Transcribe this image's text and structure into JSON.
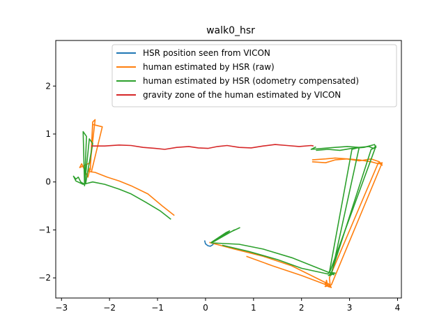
{
  "chart_data": {
    "type": "line",
    "title": "walk0_hsr",
    "xlabel": "",
    "ylabel": "",
    "xlim": [
      -3.12,
      4.08
    ],
    "ylim": [
      -2.42,
      2.95
    ],
    "xticks": [
      -3,
      -2,
      -1,
      0,
      1,
      2,
      3,
      4
    ],
    "yticks": [
      -2,
      -1,
      0,
      1,
      2
    ],
    "xtick_labels": [
      "−3",
      "−2",
      "−1",
      "0",
      "1",
      "2",
      "3",
      "4"
    ],
    "ytick_labels": [
      "−2",
      "−1",
      "0",
      "1",
      "2"
    ],
    "grid": false,
    "legend_position": "top-right",
    "series": [
      {
        "name": "HSR position seen from VICON",
        "color": "#1f77b4",
        "segments": [
          [
            [
              -0.02,
              -1.22
            ],
            [
              0.0,
              -1.29
            ],
            [
              0.05,
              -1.33
            ],
            [
              0.1,
              -1.34
            ],
            [
              0.15,
              -1.31
            ],
            [
              0.18,
              -1.27
            ]
          ]
        ]
      },
      {
        "name": "human estimated by HSR (raw)",
        "color": "#ff7f0e",
        "segments": [
          [
            [
              -0.65,
              -0.7
            ],
            [
              -0.9,
              -0.5
            ],
            [
              -1.2,
              -0.25
            ],
            [
              -1.55,
              -0.08
            ],
            [
              -1.8,
              0.02
            ],
            [
              -2.05,
              0.1
            ],
            [
              -2.3,
              0.2
            ],
            [
              -2.45,
              0.22
            ],
            [
              -2.4,
              0.3
            ],
            [
              -2.45,
              0.1
            ],
            [
              -2.58,
              0.38
            ],
            [
              -2.62,
              0.3
            ],
            [
              -2.4,
              0.4
            ],
            [
              -2.3,
              1.3
            ],
            [
              -2.35,
              1.25
            ],
            [
              -2.4,
              0.25
            ],
            [
              -2.35,
              1.2
            ],
            [
              -2.15,
              1.15
            ],
            [
              -2.38,
              0.2
            ]
          ],
          [
            [
              0.08,
              -1.26
            ],
            [
              0.6,
              -1.4
            ],
            [
              1.2,
              -1.55
            ],
            [
              1.8,
              -1.75
            ],
            [
              2.3,
              -2.0
            ],
            [
              2.6,
              -2.15
            ],
            [
              2.5,
              -2.18
            ],
            [
              2.52,
              -2.05
            ],
            [
              2.55,
              -2.18
            ],
            [
              2.62,
              -2.2
            ],
            [
              2.56,
              -2.12
            ],
            [
              2.48,
              -2.12
            ]
          ],
          [
            [
              0.85,
              -1.55
            ],
            [
              1.4,
              -1.75
            ],
            [
              2.0,
              -1.95
            ],
            [
              2.45,
              -2.12
            ],
            [
              2.6,
              -2.18
            ],
            [
              2.58,
              -2.0
            ],
            [
              3.6,
              0.4
            ],
            [
              3.68,
              0.35
            ],
            [
              3.62,
              0.42
            ],
            [
              3.45,
              0.48
            ],
            [
              3.2,
              0.44
            ],
            [
              2.95,
              0.48
            ],
            [
              2.7,
              0.46
            ],
            [
              2.5,
              0.4
            ],
            [
              2.22,
              0.42
            ]
          ],
          [
            [
              2.22,
              0.46
            ],
            [
              2.5,
              0.48
            ],
            [
              2.7,
              0.5
            ],
            [
              2.95,
              0.48
            ],
            [
              3.2,
              0.46
            ],
            [
              3.45,
              0.42
            ],
            [
              3.6,
              0.38
            ],
            [
              3.68,
              0.4
            ],
            [
              3.65,
              0.33
            ],
            [
              2.62,
              -2.15
            ],
            [
              2.48,
              -2.18
            ]
          ]
        ]
      },
      {
        "name": "human estimated by HSR (odometry compensated)",
        "color": "#2ca02c",
        "segments": [
          [
            [
              -0.72,
              -0.78
            ],
            [
              -0.95,
              -0.6
            ],
            [
              -1.25,
              -0.42
            ],
            [
              -1.55,
              -0.25
            ],
            [
              -1.8,
              -0.15
            ],
            [
              -2.1,
              -0.05
            ],
            [
              -2.35,
              0.0
            ],
            [
              -2.55,
              -0.05
            ],
            [
              -2.7,
              0.02
            ],
            [
              -2.75,
              0.12
            ],
            [
              -2.7,
              0.06
            ],
            [
              -2.65,
              0.1
            ],
            [
              -2.6,
              0.0
            ],
            [
              -2.52,
              -0.05
            ],
            [
              -2.55,
              1.05
            ],
            [
              -2.48,
              0.95
            ],
            [
              -2.52,
              -0.08
            ],
            [
              -2.42,
              0.9
            ],
            [
              -2.35,
              0.8
            ],
            [
              -2.5,
              -0.05
            ]
          ],
          [
            [
              0.72,
              -0.95
            ],
            [
              0.4,
              -1.1
            ],
            [
              0.2,
              -1.22
            ],
            [
              0.12,
              -1.26
            ],
            [
              0.42,
              -1.06
            ],
            [
              0.5,
              -1.02
            ],
            [
              0.18,
              -1.24
            ],
            [
              0.6,
              -1.0
            ],
            [
              0.12,
              -1.27
            ],
            [
              0.7,
              -1.3
            ],
            [
              1.2,
              -1.4
            ],
            [
              1.8,
              -1.58
            ],
            [
              2.3,
              -1.78
            ],
            [
              2.65,
              -1.92
            ],
            [
              2.55,
              -1.88
            ],
            [
              2.7,
              -1.9
            ],
            [
              2.58,
              -1.95
            ]
          ],
          [
            [
              0.35,
              -1.32
            ],
            [
              0.9,
              -1.45
            ],
            [
              1.5,
              -1.62
            ],
            [
              2.0,
              -1.8
            ],
            [
              2.55,
              -1.92
            ],
            [
              2.6,
              -1.85
            ],
            [
              3.55,
              0.75
            ],
            [
              3.5,
              0.7
            ],
            [
              3.4,
              0.74
            ],
            [
              3.2,
              0.72
            ],
            [
              2.95,
              0.74
            ],
            [
              2.7,
              0.72
            ],
            [
              2.45,
              0.7
            ],
            [
              2.2,
              0.68
            ],
            [
              2.3,
              0.73
            ]
          ],
          [
            [
              2.3,
              0.66
            ],
            [
              2.55,
              0.68
            ],
            [
              2.8,
              0.66
            ],
            [
              3.05,
              0.7
            ],
            [
              3.3,
              0.72
            ],
            [
              3.52,
              0.78
            ],
            [
              3.55,
              0.72
            ],
            [
              3.45,
              0.68
            ],
            [
              2.62,
              -1.9
            ],
            [
              2.56,
              -1.95
            ],
            [
              2.62,
              -1.94
            ],
            [
              3.2,
              0.72
            ],
            [
              3.05,
              0.68
            ],
            [
              2.58,
              -1.88
            ],
            [
              2.68,
              -1.94
            ]
          ]
        ]
      },
      {
        "name": "gravity zone of the human estimated by VICON",
        "color": "#d62728",
        "segments": [
          [
            [
              -2.38,
              0.75
            ],
            [
              -2.1,
              0.75
            ],
            [
              -1.8,
              0.77
            ],
            [
              -1.55,
              0.76
            ],
            [
              -1.3,
              0.72
            ],
            [
              -1.05,
              0.7
            ],
            [
              -0.85,
              0.68
            ],
            [
              -0.6,
              0.72
            ],
            [
              -0.35,
              0.74
            ],
            [
              -0.15,
              0.71
            ],
            [
              0.05,
              0.7
            ],
            [
              0.25,
              0.74
            ],
            [
              0.45,
              0.76
            ],
            [
              0.7,
              0.72
            ],
            [
              0.95,
              0.71
            ],
            [
              1.2,
              0.75
            ],
            [
              1.45,
              0.78
            ],
            [
              1.7,
              0.76
            ],
            [
              1.95,
              0.74
            ],
            [
              2.2,
              0.76
            ],
            [
              2.25,
              0.75
            ]
          ]
        ]
      }
    ]
  }
}
